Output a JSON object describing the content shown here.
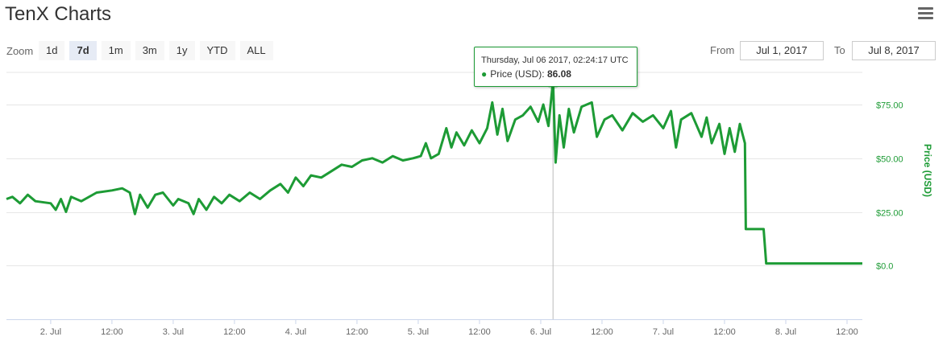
{
  "header": {
    "title": "TenX Charts",
    "menu_icon": "hamburger-menu-icon"
  },
  "zoom": {
    "label": "Zoom",
    "buttons": [
      "1d",
      "7d",
      "1m",
      "3m",
      "1y",
      "YTD",
      "ALL"
    ],
    "active": "7d"
  },
  "range": {
    "from_label": "From",
    "from_value": "Jul 1, 2017",
    "to_label": "To",
    "to_value": "Jul 8, 2017"
  },
  "tooltip": {
    "date": "Thursday, Jul 06 2017, 02:24:17 UTC",
    "series": "Price (USD):",
    "value": "86.08"
  },
  "colors": {
    "series": "#1d9b35",
    "axis_text": "#666666",
    "grid": "#e6e6e6",
    "y_label": "#1d9b35"
  },
  "chart_data": {
    "type": "line",
    "title": "TenX Charts",
    "ylabel": "Price (USD)",
    "xlabel": "",
    "ylim": [
      -25,
      90
    ],
    "y_ticks": [
      0,
      25,
      50,
      75
    ],
    "y_tick_labels": [
      "$0.0",
      "$25.00",
      "$50.00",
      "$75.00"
    ],
    "x_ticks": [
      "2017-07-02 00:00",
      "2017-07-02 12:00",
      "2017-07-03 00:00",
      "2017-07-03 12:00",
      "2017-07-04 00:00",
      "2017-07-04 12:00",
      "2017-07-05 00:00",
      "2017-07-05 12:00",
      "2017-07-06 00:00",
      "2017-07-06 12:00",
      "2017-07-07 00:00",
      "2017-07-07 12:00",
      "2017-07-08 00:00",
      "2017-07-08 12:00"
    ],
    "x_tick_labels": [
      "2. Jul",
      "12:00",
      "3. Jul",
      "12:00",
      "4. Jul",
      "12:00",
      "5. Jul",
      "12:00",
      "6. Jul",
      "12:00",
      "7. Jul",
      "12:00",
      "8. Jul",
      "12:00"
    ],
    "xlim": [
      "2017-07-01 15:20",
      "2017-07-08 15:00"
    ],
    "grid": true,
    "legend": "none",
    "highlight": {
      "x": "2017-07-06 02:24:17",
      "y": 86.08
    },
    "series": [
      {
        "name": "Price (USD)",
        "points": [
          [
            "2017-07-01 15:20",
            31
          ],
          [
            "2017-07-01 16:30",
            32
          ],
          [
            "2017-07-01 18:00",
            29
          ],
          [
            "2017-07-01 19:30",
            33
          ],
          [
            "2017-07-01 21:00",
            30
          ],
          [
            "2017-07-02 00:00",
            29
          ],
          [
            "2017-07-02 01:00",
            26
          ],
          [
            "2017-07-02 02:00",
            31
          ],
          [
            "2017-07-02 03:00",
            25
          ],
          [
            "2017-07-02 04:00",
            32
          ],
          [
            "2017-07-02 06:00",
            30
          ],
          [
            "2017-07-02 09:00",
            34
          ],
          [
            "2017-07-02 12:00",
            35
          ],
          [
            "2017-07-02 14:00",
            36
          ],
          [
            "2017-07-02 15:30",
            34
          ],
          [
            "2017-07-02 16:30",
            24
          ],
          [
            "2017-07-02 17:30",
            33
          ],
          [
            "2017-07-02 19:00",
            27
          ],
          [
            "2017-07-02 20:30",
            33
          ],
          [
            "2017-07-02 22:00",
            34
          ],
          [
            "2017-07-03 00:00",
            28
          ],
          [
            "2017-07-03 01:00",
            31
          ],
          [
            "2017-07-03 03:00",
            29
          ],
          [
            "2017-07-03 04:00",
            24
          ],
          [
            "2017-07-03 05:00",
            31
          ],
          [
            "2017-07-03 06:30",
            26
          ],
          [
            "2017-07-03 08:00",
            32
          ],
          [
            "2017-07-03 09:30",
            29
          ],
          [
            "2017-07-03 11:00",
            33
          ],
          [
            "2017-07-03 13:00",
            30
          ],
          [
            "2017-07-03 15:00",
            34
          ],
          [
            "2017-07-03 17:00",
            31
          ],
          [
            "2017-07-03 19:00",
            35
          ],
          [
            "2017-07-03 21:00",
            38
          ],
          [
            "2017-07-03 22:30",
            34
          ],
          [
            "2017-07-04 00:00",
            41
          ],
          [
            "2017-07-04 01:30",
            37
          ],
          [
            "2017-07-04 03:00",
            42
          ],
          [
            "2017-07-04 05:00",
            41
          ],
          [
            "2017-07-04 07:00",
            44
          ],
          [
            "2017-07-04 09:00",
            47
          ],
          [
            "2017-07-04 11:00",
            46
          ],
          [
            "2017-07-04 13:00",
            49
          ],
          [
            "2017-07-04 15:00",
            50
          ],
          [
            "2017-07-04 17:00",
            48
          ],
          [
            "2017-07-04 19:00",
            51
          ],
          [
            "2017-07-04 21:00",
            49
          ],
          [
            "2017-07-04 23:00",
            50
          ],
          [
            "2017-07-05 00:30",
            51
          ],
          [
            "2017-07-05 01:30",
            57
          ],
          [
            "2017-07-05 02:30",
            50
          ],
          [
            "2017-07-05 04:00",
            52
          ],
          [
            "2017-07-05 05:30",
            64
          ],
          [
            "2017-07-05 06:30",
            55
          ],
          [
            "2017-07-05 07:30",
            62
          ],
          [
            "2017-07-05 09:00",
            56
          ],
          [
            "2017-07-05 10:30",
            63
          ],
          [
            "2017-07-05 12:00",
            57
          ],
          [
            "2017-07-05 13:30",
            64
          ],
          [
            "2017-07-05 14:30",
            76
          ],
          [
            "2017-07-05 15:30",
            61
          ],
          [
            "2017-07-05 16:30",
            73
          ],
          [
            "2017-07-05 17:30",
            58
          ],
          [
            "2017-07-05 19:00",
            68
          ],
          [
            "2017-07-05 20:30",
            70
          ],
          [
            "2017-07-05 22:00",
            74
          ],
          [
            "2017-07-05 23:30",
            67
          ],
          [
            "2017-07-06 00:30",
            75
          ],
          [
            "2017-07-06 01:30",
            65
          ],
          [
            "2017-07-06 02:24",
            86.08
          ],
          [
            "2017-07-06 02:55",
            48
          ],
          [
            "2017-07-06 03:40",
            70
          ],
          [
            "2017-07-06 04:30",
            55
          ],
          [
            "2017-07-06 05:30",
            73
          ],
          [
            "2017-07-06 06:30",
            62
          ],
          [
            "2017-07-06 08:00",
            74
          ],
          [
            "2017-07-06 10:00",
            76
          ],
          [
            "2017-07-06 11:00",
            60
          ],
          [
            "2017-07-06 12:30",
            68
          ],
          [
            "2017-07-06 14:00",
            70
          ],
          [
            "2017-07-06 16:00",
            63
          ],
          [
            "2017-07-06 18:00",
            71
          ],
          [
            "2017-07-06 20:00",
            67
          ],
          [
            "2017-07-06 22:00",
            70
          ],
          [
            "2017-07-07 00:00",
            64
          ],
          [
            "2017-07-07 01:30",
            72
          ],
          [
            "2017-07-07 02:30",
            55
          ],
          [
            "2017-07-07 03:30",
            68
          ],
          [
            "2017-07-07 05:30",
            71
          ],
          [
            "2017-07-07 07:30",
            60
          ],
          [
            "2017-07-07 08:30",
            69
          ],
          [
            "2017-07-07 09:30",
            57
          ],
          [
            "2017-07-07 11:00",
            66
          ],
          [
            "2017-07-07 12:00",
            52
          ],
          [
            "2017-07-07 13:00",
            64
          ],
          [
            "2017-07-07 14:00",
            53
          ],
          [
            "2017-07-07 15:00",
            66
          ],
          [
            "2017-07-07 16:00",
            57
          ],
          [
            "2017-07-07 16:10",
            17
          ],
          [
            "2017-07-07 19:40",
            17
          ],
          [
            "2017-07-07 20:10",
            1
          ],
          [
            "2017-07-08 03:00",
            1
          ],
          [
            "2017-07-08 15:00",
            1
          ]
        ]
      }
    ]
  }
}
